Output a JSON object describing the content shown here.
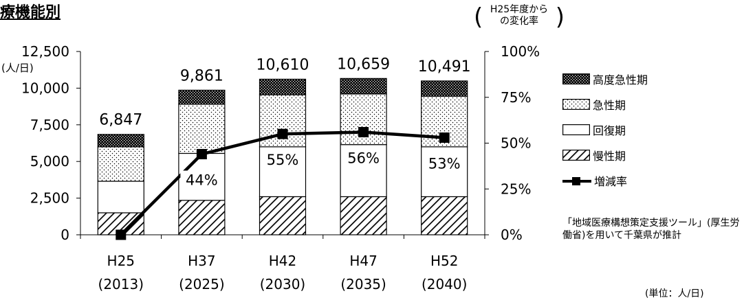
{
  "title": "療機能別",
  "right_axis_title": [
    "H25年度から",
    "の変化率"
  ],
  "note": "「地域医療構想策定支援ツール」(厚生労働省)を用いて千葉県が推計",
  "unit_note": "(単位：人/日)",
  "chart_data": {
    "type": "bar",
    "stacked": true,
    "categories": [
      "H25\n(2013)",
      "H37\n(2025)",
      "H42\n(2030)",
      "H47\n(2035)",
      "H52\n(2040)"
    ],
    "category_lines": [
      [
        "H25",
        "(2013)"
      ],
      [
        "H37",
        "(2025)"
      ],
      [
        "H42",
        "(2030)"
      ],
      [
        "H47",
        "(2035)"
      ],
      [
        "H52",
        "(2040)"
      ]
    ],
    "ylabel": "(人/日)",
    "ylim": [
      0,
      12500
    ],
    "yticks": [
      "0",
      "2,500",
      "5,000",
      "7,500",
      "10,000",
      "12,500"
    ],
    "y2lim": [
      0,
      100
    ],
    "y2ticks": [
      "0%",
      "25%",
      "50%",
      "75%",
      "100%"
    ],
    "series": [
      {
        "name": "慢性期",
        "pattern": "diagonal",
        "values": [
          1500,
          2350,
          2600,
          2600,
          2600
        ]
      },
      {
        "name": "回復期",
        "pattern": "white",
        "values": [
          2150,
          3200,
          3400,
          3550,
          3400
        ]
      },
      {
        "name": "急性期",
        "pattern": "dots",
        "values": [
          2350,
          3350,
          3550,
          3450,
          3450
        ]
      },
      {
        "name": "高度急性期",
        "pattern": "dense",
        "values": [
          847,
          961,
          1060,
          1059,
          1041
        ]
      }
    ],
    "totals": [
      6847,
      9861,
      10610,
      10659,
      10491
    ],
    "total_labels": [
      "6,847",
      "9,861",
      "10,610",
      "10,659",
      "10,491"
    ],
    "line_series": {
      "name": "増減率",
      "axis": "right",
      "values": [
        0,
        44,
        55,
        56,
        53
      ]
    },
    "line_labels": [
      "",
      "44%",
      "55%",
      "56%",
      "53%"
    ],
    "legend": [
      {
        "name": "高度急性期",
        "swatch": "dense"
      },
      {
        "name": "急性期",
        "swatch": "dots"
      },
      {
        "name": "回復期",
        "swatch": "white"
      },
      {
        "name": "慢性期",
        "swatch": "diagonal"
      },
      {
        "name": "増減率",
        "swatch": "line-marker"
      }
    ],
    "legend_position": "right"
  }
}
